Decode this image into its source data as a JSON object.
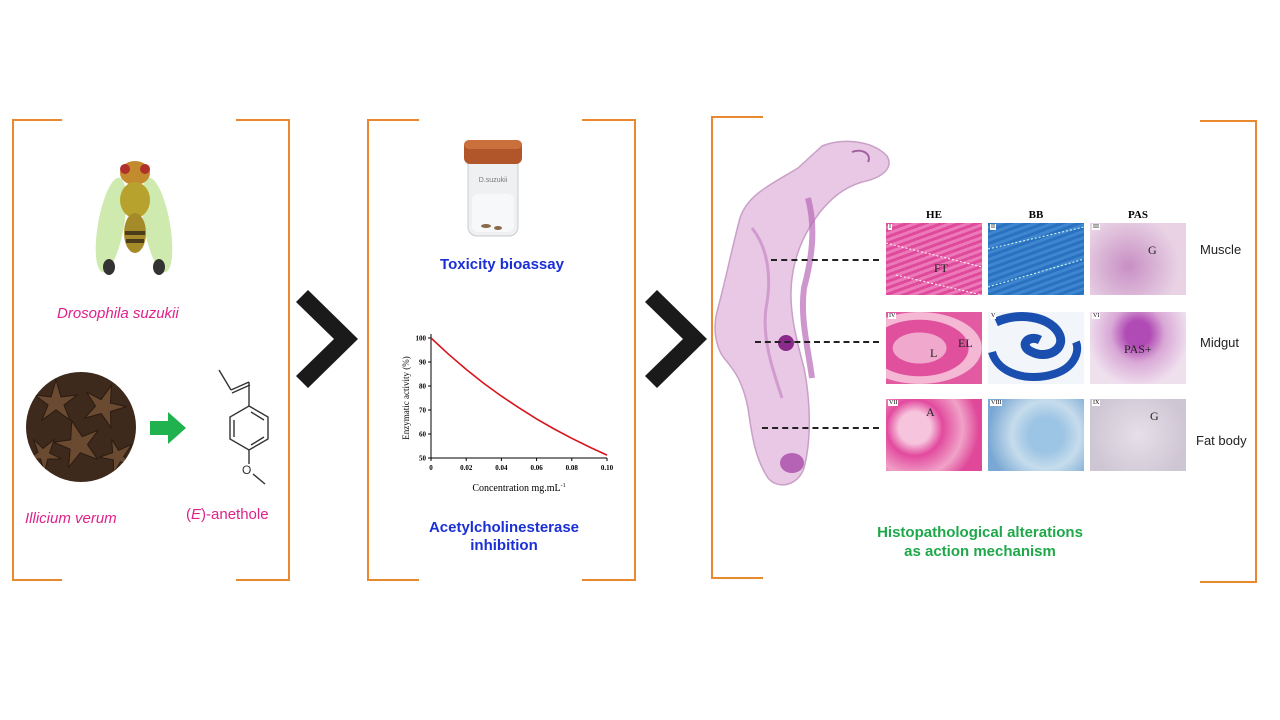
{
  "panel1": {
    "fly_label": "Drosophila suzukii",
    "plant_label": "Illicium verum",
    "compound_prefix": "(",
    "compound_italic": "E",
    "compound_suffix": ")-anethole",
    "oxygen_atom": "O"
  },
  "panel2": {
    "vial_label": "D.suzukii",
    "bioassay_label": "Toxicity bioassay",
    "ache_label_line1": "Acetylcholinesterase",
    "ache_label_line2": "inhibition"
  },
  "panel3": {
    "columns": [
      "HE",
      "BB",
      "PAS"
    ],
    "rows": [
      "Muscle",
      "Midgut",
      "Fat body"
    ],
    "panel_numbers": [
      "I",
      "II",
      "III",
      "IV",
      "V",
      "VI",
      "VII",
      "VIII",
      "IX"
    ],
    "panel_tags": {
      "p1": "FT",
      "p3": "G",
      "p4a": "L",
      "p4b": "EL",
      "p6": "PAS+",
      "p7": "A",
      "p9": "G"
    },
    "caption_line1": "Histopathological alterations",
    "caption_line2": "as action mechanism"
  },
  "colors": {
    "bracket": "#e8892f",
    "species": "#e0218a",
    "assay": "#1a2fd6",
    "caption": "#1fa84a",
    "arrow": "#1fb24e",
    "curve": "#d9141c"
  },
  "chart_data": {
    "type": "line",
    "title": "",
    "xlabel": "Concentration mg.mL",
    "xlabel_superscript": "-1",
    "ylabel": "Enzymatic activity (%)",
    "xlim": [
      0,
      0.1
    ],
    "ylim": [
      50,
      100
    ],
    "x_ticks": [
      "0",
      "0.02",
      "0.04",
      "0.06",
      "0.08",
      "0.10"
    ],
    "y_ticks": [
      "50",
      "60",
      "70",
      "80",
      "90",
      "100"
    ],
    "grid": false,
    "series": [
      {
        "x": [
          0,
          0.01,
          0.02,
          0.03,
          0.04,
          0.05,
          0.06,
          0.07,
          0.08,
          0.09,
          0.1
        ],
        "values": [
          100,
          93.2,
          86.9,
          81.1,
          75.8,
          70.9,
          66.3,
          62.1,
          58.2,
          54.6,
          51.2
        ]
      }
    ]
  }
}
